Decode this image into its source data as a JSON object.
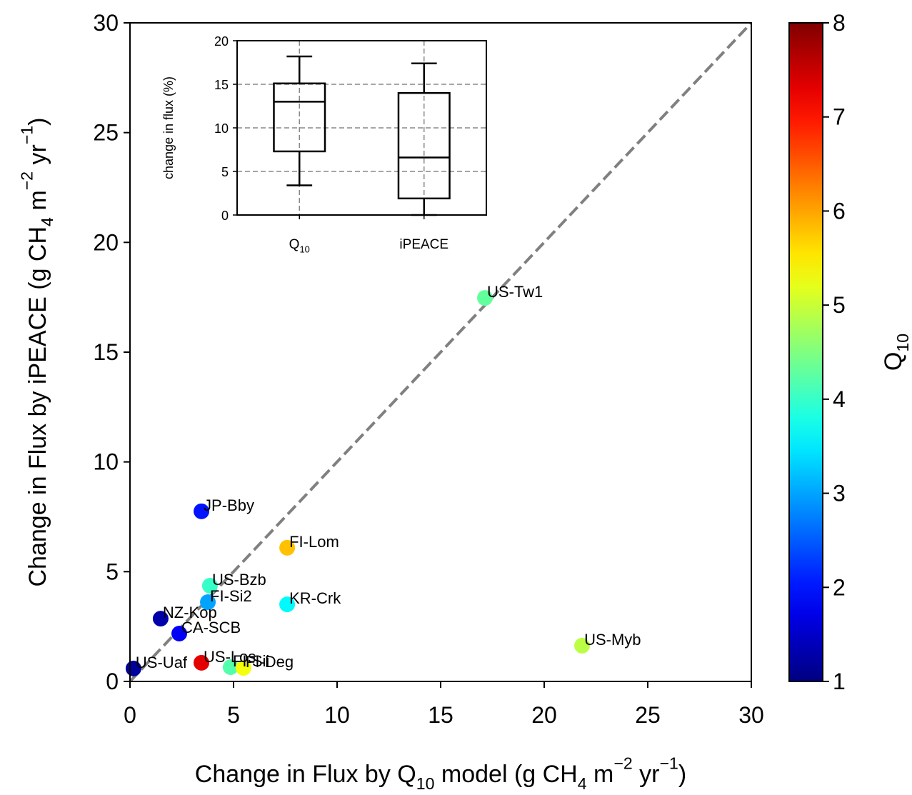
{
  "chart_data": [
    {
      "type": "scatter",
      "x_label": [
        {
          "text": "Change in Flux by Q"
        },
        {
          "sub": "10"
        },
        {
          "text": " model (g CH"
        },
        {
          "sub": "4"
        },
        {
          "text": " m"
        },
        {
          "sup": "−2"
        },
        {
          "text": " yr"
        },
        {
          "sup": "−1"
        },
        {
          "text": ")"
        }
      ],
      "y_label": [
        {
          "text": "Change in Flux by iPEACE (g CH"
        },
        {
          "sub": "4"
        },
        {
          "text": " m"
        },
        {
          "sup": "−2"
        },
        {
          "text": " yr"
        },
        {
          "sup": "−1"
        },
        {
          "text": ")"
        }
      ],
      "xlim": [
        0,
        30
      ],
      "ylim": [
        0,
        30
      ],
      "xticks": [
        0,
        5,
        10,
        15,
        20,
        25,
        30
      ],
      "yticks": [
        0,
        5,
        10,
        15,
        20,
        25,
        30
      ],
      "labels": [
        "US-Uaf",
        "NZ-Kop",
        "CA-SCB",
        "JP-Bby",
        "US-Bzb",
        "FI-Si2",
        "US-Los",
        "FI-Sii",
        "FI-Deg",
        "FI-Lom",
        "KR-Crk",
        "US-Tw1",
        "US-Myb"
      ],
      "x": [
        0.17,
        1.48,
        2.38,
        3.45,
        3.86,
        3.76,
        3.45,
        4.86,
        5.48,
        7.59,
        7.59,
        17.14,
        21.83
      ],
      "y": [
        0.59,
        2.86,
        2.18,
        7.75,
        4.36,
        3.61,
        0.85,
        0.65,
        0.62,
        6.09,
        3.51,
        17.47,
        1.63
      ],
      "c": [
        1.2,
        1.3,
        1.8,
        2.0,
        4.0,
        3.0,
        7.3,
        4.2,
        5.3,
        5.8,
        3.6,
        4.3,
        4.9
      ],
      "colormap": "jet",
      "clim": [
        1,
        8
      ],
      "cticks": [
        1,
        2,
        3,
        4,
        5,
        6,
        7,
        8
      ],
      "colorbar_label": [
        {
          "text": "Q"
        },
        {
          "sub": "10"
        }
      ],
      "identity_line": true
    },
    {
      "type": "box",
      "categories": [
        [
          {
            "text": "Q"
          },
          {
            "sub": "10"
          }
        ],
        [
          {
            "text": "iPEACE"
          }
        ]
      ],
      "y_label": [
        {
          "text": "change in flux (%)"
        }
      ],
      "ylim": [
        0,
        20
      ],
      "yticks": [
        0,
        5,
        10,
        15,
        20
      ],
      "grid": true,
      "boxes": [
        {
          "whislo": 3.4,
          "q1": 7.3,
          "med": 13.0,
          "q3": 15.1,
          "whishi": 18.2
        },
        {
          "whislo": 0,
          "q1": 1.9,
          "med": 6.6,
          "q3": 14.0,
          "whishi": 17.4
        }
      ]
    }
  ]
}
